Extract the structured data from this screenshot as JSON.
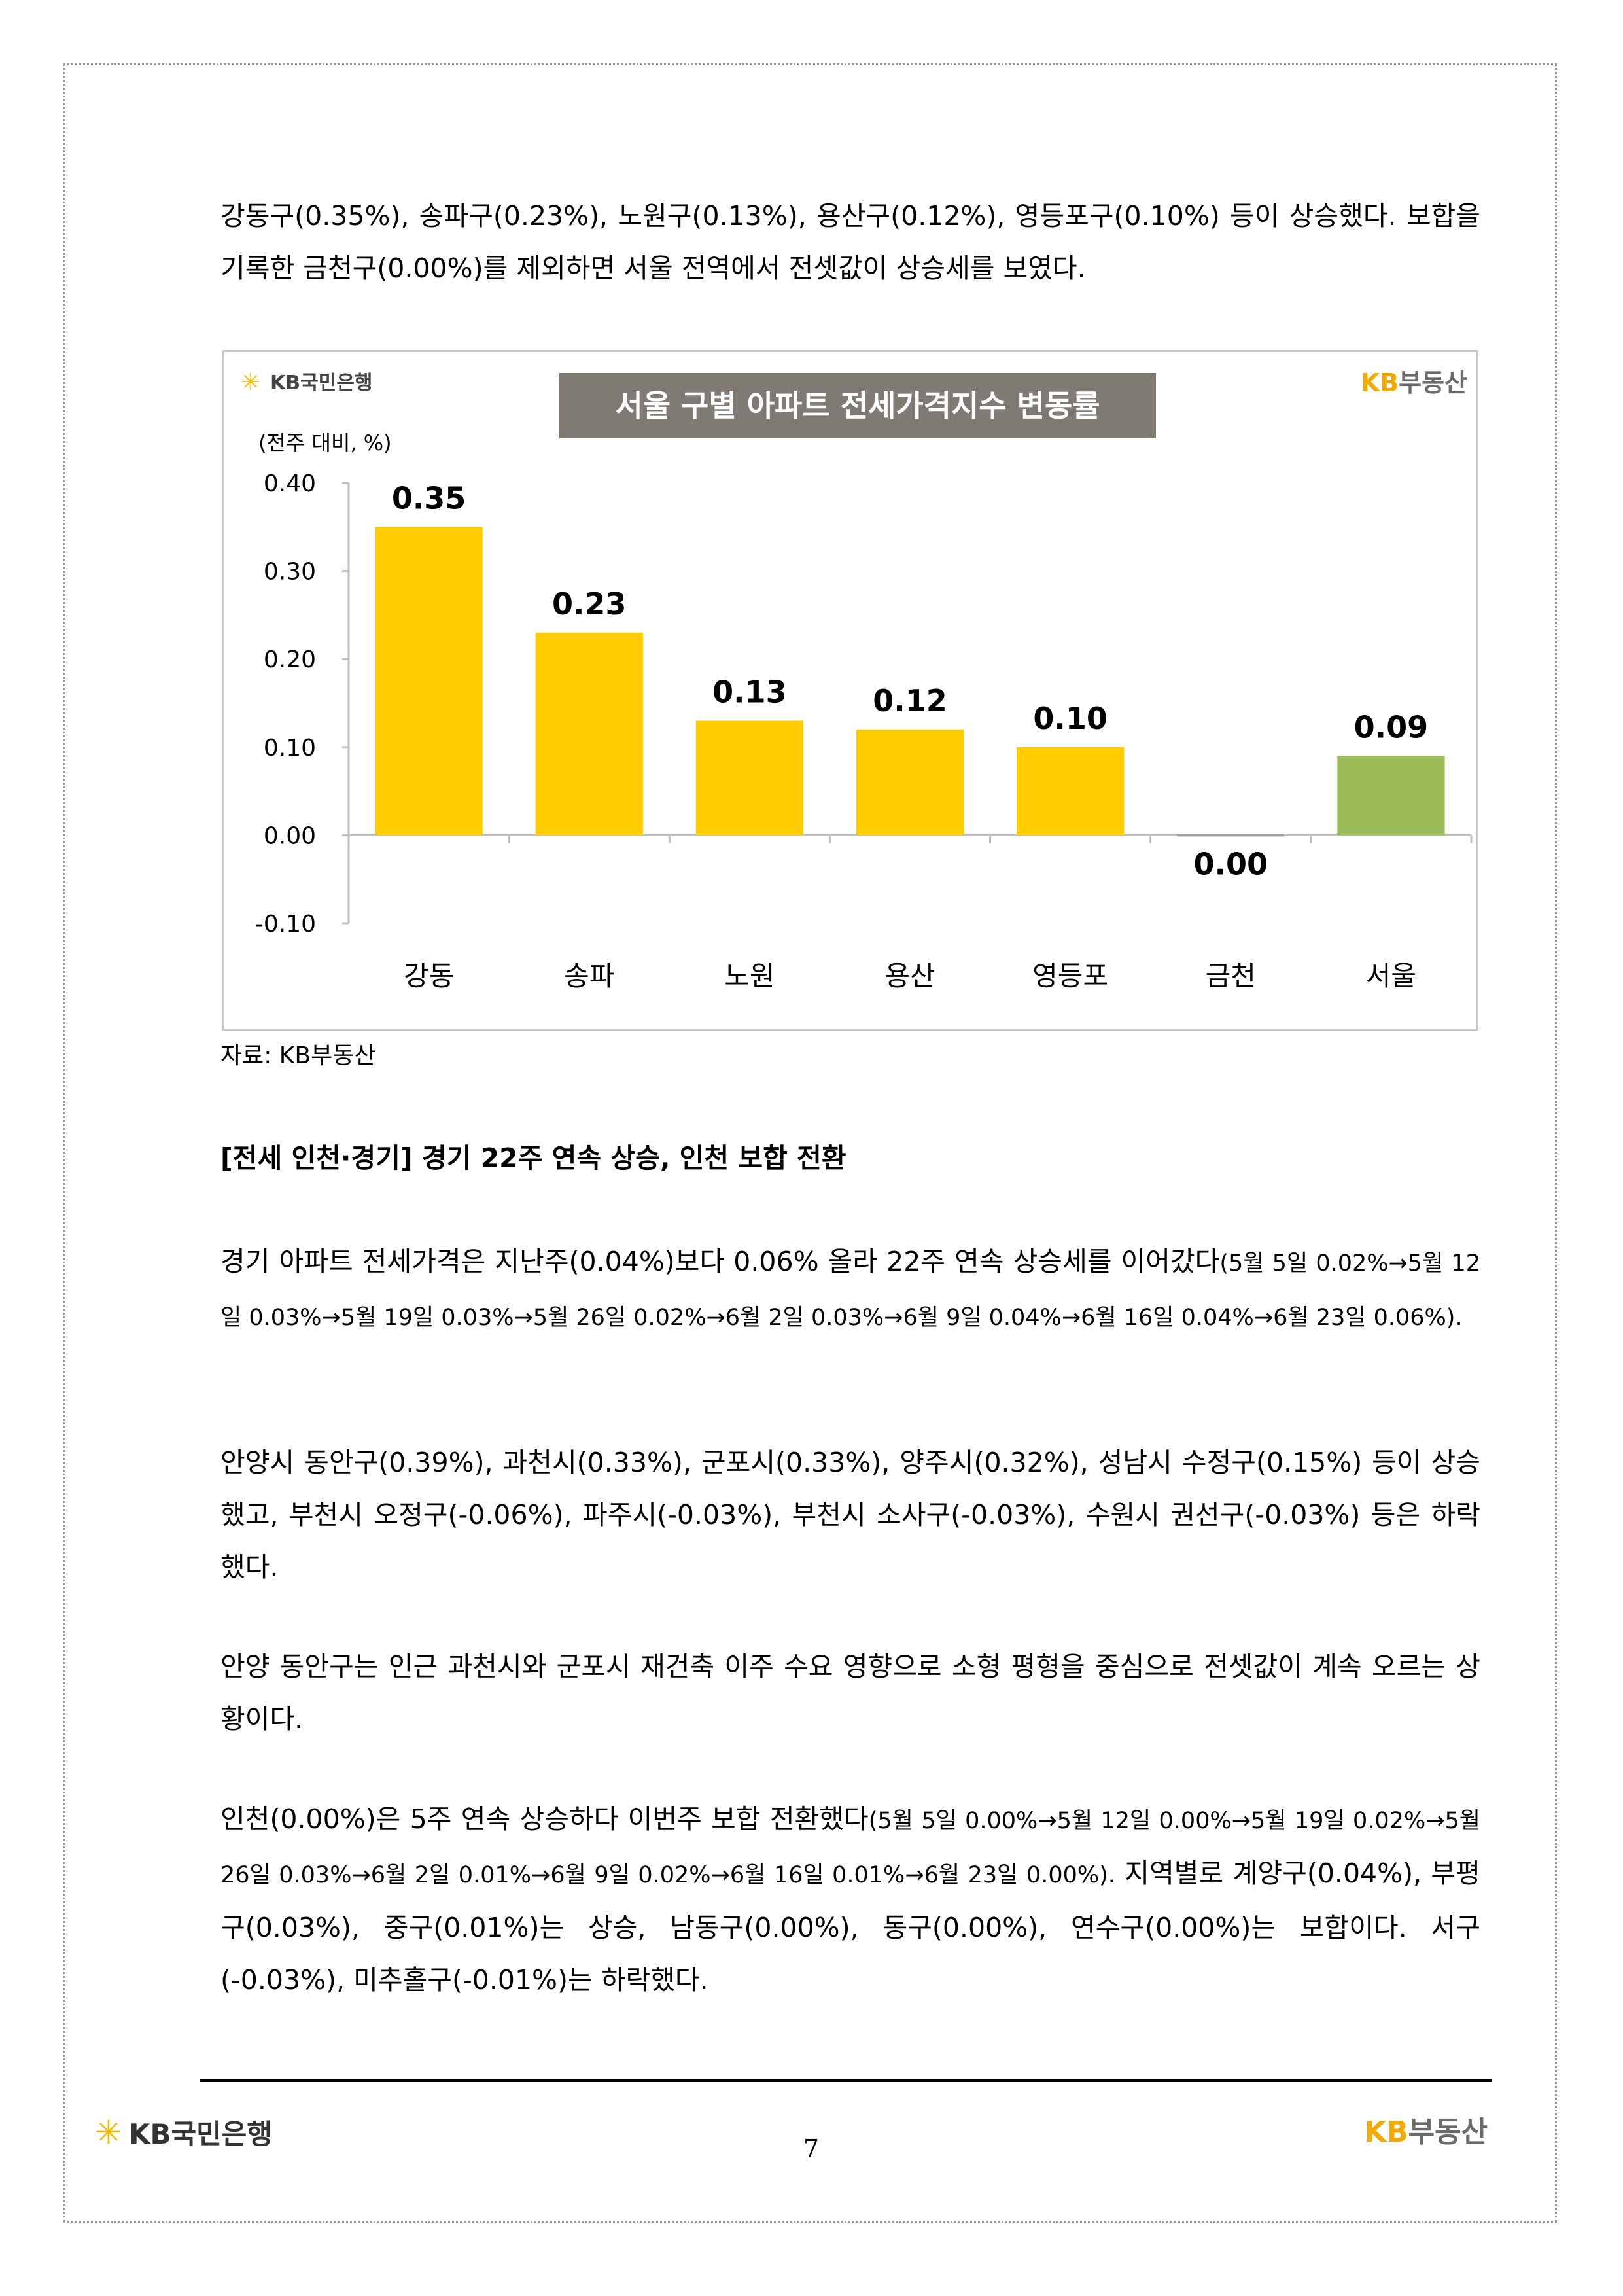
{
  "paragraphs": {
    "p1": "강동구(0.35%), 송파구(0.23%), 노원구(0.13%), 용산구(0.12%), 영등포구(0.10%) 등이 상승했다. 보합을 기록한 금천구(0.00%)를 제외하면 서울 전역에서 전셋값이 상승세를 보였다.",
    "heading": "[전세 인천·경기] 경기 22주 연속 상승, 인천 보합 전환",
    "p2_main": "경기 아파트 전세가격은 지난주(0.04%)보다 0.06% 올라 22주 연속 상승세를 이어갔다",
    "p2_detail": "(5월 5일 0.02%→5월 12일 0.03%→5월 19일 0.03%→5월 26일 0.02%→6월 2일 0.03%→6월 9일 0.04%→6월 16일 0.04%→6월 23일 0.06%).",
    "p3": "안양시 동안구(0.39%), 과천시(0.33%), 군포시(0.33%), 양주시(0.32%), 성남시 수정구(0.15%) 등이 상승했고, 부천시 오정구(-0.06%), 파주시(-0.03%), 부천시 소사구(-0.03%), 수원시 권선구(-0.03%) 등은 하락했다.",
    "p4": "안양 동안구는 인근 과천시와 군포시 재건축 이주 수요 영향으로 소형 평형을 중심으로 전셋값이 계속 오르는 상황이다.",
    "p5_main": "인천(0.00%)은 5주 연속 상승하다 이번주 보합 전환했다",
    "p5_detail": "(5월 5일 0.00%→5월 12일 0.00%→5월 19일 0.02%→5월 26일 0.03%→6월 2일 0.01%→6월 9일 0.02%→6월 16일 0.01%→6월 23일 0.00%).",
    "p5_tail": " 지역별로 계양구(0.04%), 부평구(0.03%), 중구(0.01%)는 상승, 남동구(0.00%), 동구(0.00%), 연수구(0.00%)는 보합이다. 서구(-0.03%), 미추홀구(-0.01%)는 하락했다."
  },
  "chart_data": {
    "type": "bar",
    "title": "서울 구별 아파트 전세가격지수 변동률",
    "unit_label": "(전주 대비, %)",
    "categories": [
      "강동",
      "송파",
      "노원",
      "용산",
      "영등포",
      "금천",
      "서울"
    ],
    "values": [
      0.35,
      0.23,
      0.13,
      0.12,
      0.1,
      0.0,
      0.09
    ],
    "value_labels": [
      "0.35",
      "0.23",
      "0.13",
      "0.12",
      "0.10",
      "0.00",
      "0.09"
    ],
    "ylim": [
      -0.1,
      0.4
    ],
    "yticks": [
      "0.40",
      "0.30",
      "0.20",
      "0.10",
      "0.00",
      "-0.10"
    ],
    "ytick_values": [
      0.4,
      0.3,
      0.2,
      0.1,
      0.0,
      -0.1
    ],
    "bar_colors": [
      "#ffcc00",
      "#ffcc00",
      "#ffcc00",
      "#ffcc00",
      "#ffcc00",
      "#a0a0a0",
      "#9bbb59"
    ],
    "grid": false,
    "legend": "none"
  },
  "chart_logos": {
    "left_bank": "KB국민은행",
    "right_kb": "KB",
    "right_name": "부동산"
  },
  "source": "자료: KB부동산",
  "footer": {
    "bank_logo": "KB국민은행",
    "re_kb": "KB",
    "re_name": "부동산",
    "page_number": "7"
  },
  "colors": {
    "title_bg": "#7f7a74",
    "kb_yellow": "#ffcc00",
    "seoul_green": "#9bbb59",
    "logo_gold": "#f2a900"
  }
}
